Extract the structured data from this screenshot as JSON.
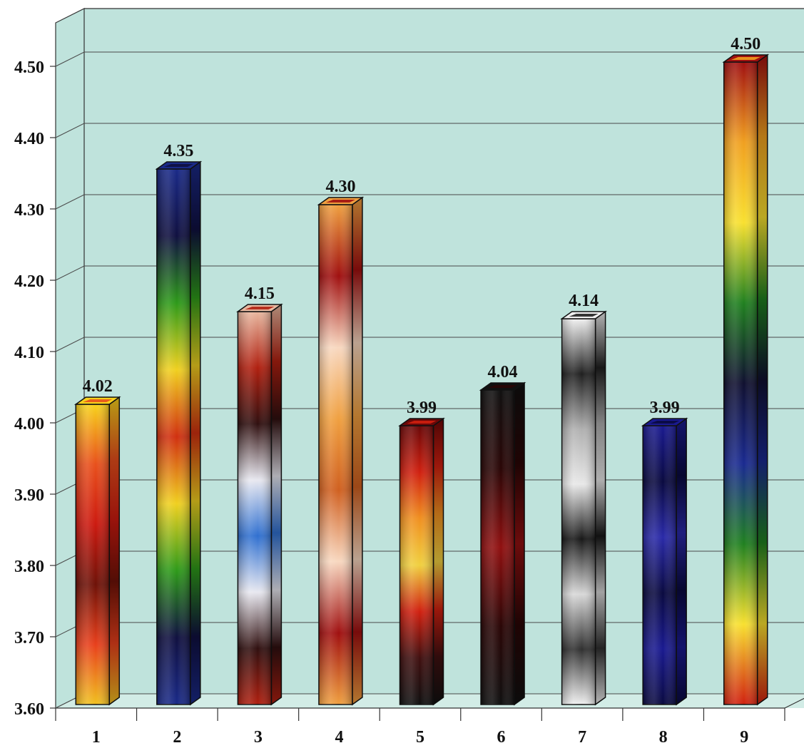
{
  "chart_data": {
    "type": "bar",
    "title": "",
    "xlabel": "",
    "ylabel": "",
    "ylim": [
      3.6,
      4.5
    ],
    "yticks": [
      3.6,
      3.7,
      3.8,
      3.9,
      4.0,
      4.1,
      4.2,
      4.3,
      4.4,
      4.5
    ],
    "ytick_labels": [
      "3.60",
      "3.70",
      "3.80",
      "3.90",
      "4.00",
      "4.10",
      "4.20",
      "4.30",
      "4.40",
      "4.50"
    ],
    "categories": [
      "1",
      "2",
      "3",
      "4",
      "5",
      "6",
      "7",
      "8",
      "9"
    ],
    "values": [
      4.02,
      4.35,
      4.15,
      4.3,
      3.99,
      4.04,
      4.14,
      3.99,
      4.5
    ],
    "value_labels": [
      "4.02",
      "4.35",
      "4.15",
      "4.30",
      "3.99",
      "4.04",
      "4.14",
      "3.99",
      "4.50"
    ],
    "grid": true,
    "style": "3d",
    "colors": {
      "wall": "#bfe3dc",
      "floor": "#d2ece6",
      "gridline": "#4a4a4a"
    },
    "bar_palettes": [
      [
        "#f7d21c",
        "#e8501c",
        "#cc1a10",
        "#6e1208",
        "#e8401c",
        "#f0c020"
      ],
      [
        "#1a2a88",
        "#101040",
        "#2e9a1a",
        "#f0d020",
        "#d03010",
        "#f0d020",
        "#2e9a1a",
        "#101040",
        "#1a2a88"
      ],
      [
        "#e8b8a0",
        "#b02010",
        "#301010",
        "#e8e8f0",
        "#3070d0",
        "#e8e8f0",
        "#301010",
        "#b02010"
      ],
      [
        "#f0a040",
        "#a01010",
        "#f8d8c0",
        "#f0a040",
        "#d06020",
        "#f8d8c0",
        "#a01010",
        "#f0a040"
      ],
      [
        "#6a0808",
        "#d02010",
        "#f09020",
        "#f0d040",
        "#d02010",
        "#401010",
        "#101010"
      ],
      [
        "#101010",
        "#2a0606",
        "#901010",
        "#2a0606",
        "#101010"
      ],
      [
        "#f0f0f0",
        "#202020",
        "#b0b0b0",
        "#e8e8e8",
        "#181818",
        "#d8d8d8",
        "#303030",
        "#f0f0f0"
      ],
      [
        "#1a1a90",
        "#0a0a40",
        "#2a2aa8",
        "#0a0a40",
        "#1a1a90",
        "#0a0a40"
      ],
      [
        "#a01010",
        "#f0a020",
        "#f8e030",
        "#208020",
        "#101030",
        "#1a2a90",
        "#208020",
        "#f8e030",
        "#d02010"
      ]
    ]
  }
}
